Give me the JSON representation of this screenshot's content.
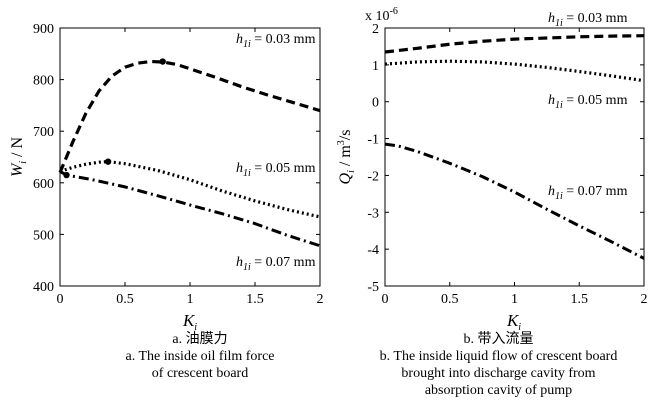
{
  "chart_data": [
    {
      "id": "a",
      "type": "line",
      "xlabel": "K",
      "xlabel_sub": "i",
      "ylabel": "W",
      "ylabel_sub": "i",
      "ylabel_unit": " / N",
      "xlim": [
        0,
        2
      ],
      "ylim": [
        400,
        900
      ],
      "xticks": [
        0,
        0.5,
        1,
        1.5,
        2
      ],
      "xtick_labels": [
        "0",
        "0.5",
        "1",
        "1.5",
        "2"
      ],
      "yticks": [
        400,
        500,
        600,
        700,
        800,
        900
      ],
      "ytick_labels": [
        "400",
        "500",
        "600",
        "700",
        "800",
        "900"
      ],
      "series": [
        {
          "name": "h1i = 0.03 mm",
          "style": "dashed",
          "x": [
            0,
            0.1,
            0.2,
            0.3,
            0.4,
            0.5,
            0.6,
            0.7,
            0.8,
            0.9,
            1.0,
            1.2,
            1.4,
            1.6,
            1.8,
            2.0
          ],
          "y": [
            620,
            680,
            735,
            778,
            807,
            824,
            832,
            835,
            834,
            829,
            821,
            804,
            786,
            770,
            755,
            740
          ],
          "marker": {
            "x": 0.79,
            "y": 835
          }
        },
        {
          "name": "h1i = 0.05 mm",
          "style": "dotted",
          "x": [
            0,
            0.1,
            0.2,
            0.3,
            0.37,
            0.5,
            0.75,
            1.0,
            1.25,
            1.5,
            1.75,
            2.0
          ],
          "y": [
            622,
            630,
            636,
            640,
            641,
            637,
            624,
            606,
            584,
            565,
            548,
            534
          ],
          "marker": {
            "x": 0.37,
            "y": 641
          }
        },
        {
          "name": "h1i = 0.07 mm",
          "style": "dashdot",
          "x": [
            0,
            0.05,
            0.25,
            0.5,
            0.75,
            1.0,
            1.25,
            1.5,
            1.75,
            2.0
          ],
          "y": [
            622,
            615,
            606,
            592,
            575,
            557,
            540,
            521,
            498,
            478
          ],
          "marker": {
            "x": 0.05,
            "y": 615
          }
        }
      ],
      "annotations": [
        {
          "series": 0,
          "text_main": "h",
          "text_sub": "1i",
          "text_value": " = 0.03 mm"
        },
        {
          "series": 1,
          "text_main": "h",
          "text_sub": "1i",
          "text_value": " = 0.05 mm"
        },
        {
          "series": 2,
          "text_main": "h",
          "text_sub": "1i",
          "text_value": " = 0.07 mm"
        }
      ]
    },
    {
      "id": "b",
      "type": "line",
      "xlabel": "K",
      "xlabel_sub": "i",
      "ylabel": "Q",
      "ylabel_sub": "i",
      "ylabel_unit": " / m",
      "ylabel_unit_sup": "3",
      "ylabel_unit_tail": "/s",
      "scale_text": "x 10",
      "scale_exp": "-6",
      "xlim": [
        0,
        2
      ],
      "ylim": [
        -5,
        2
      ],
      "xticks": [
        0,
        0.5,
        1,
        1.5,
        2
      ],
      "xtick_labels": [
        "0",
        "0.5",
        "1",
        "1.5",
        "2"
      ],
      "yticks": [
        -5,
        -4,
        -3,
        -2,
        -1,
        0,
        1,
        2
      ],
      "ytick_labels": [
        "-5",
        "-4",
        "-3",
        "-2",
        "-1",
        "0",
        "1",
        "2"
      ],
      "series": [
        {
          "name": "h1i = 0.03 mm",
          "style": "dashed",
          "x": [
            0,
            0.25,
            0.5,
            0.75,
            1.0,
            1.25,
            1.5,
            1.75,
            2.0
          ],
          "y": [
            1.35,
            1.45,
            1.56,
            1.64,
            1.7,
            1.73,
            1.76,
            1.78,
            1.79
          ]
        },
        {
          "name": "h1i = 0.05 mm",
          "style": "dotted",
          "x": [
            0,
            0.25,
            0.5,
            0.75,
            1.0,
            1.25,
            1.5,
            1.75,
            2.0
          ],
          "y": [
            1.02,
            1.08,
            1.1,
            1.08,
            1.02,
            0.93,
            0.82,
            0.7,
            0.57
          ]
        },
        {
          "name": "h1i = 0.07 mm",
          "style": "dashdot",
          "x": [
            0,
            0.1,
            0.25,
            0.5,
            0.75,
            1.0,
            1.25,
            1.5,
            1.75,
            2.0
          ],
          "y": [
            -1.15,
            -1.2,
            -1.35,
            -1.67,
            -2.03,
            -2.45,
            -2.92,
            -3.37,
            -3.8,
            -4.25
          ]
        }
      ],
      "annotations": [
        {
          "series": 0,
          "text_main": "h",
          "text_sub": "1i",
          "text_value": " = 0.03 mm"
        },
        {
          "series": 1,
          "text_main": "h",
          "text_sub": "1i",
          "text_value": " = 0.05 mm"
        },
        {
          "series": 2,
          "text_main": "h",
          "text_sub": "1i",
          "text_value": " = 0.07 mm"
        }
      ]
    }
  ],
  "captions": {
    "a": {
      "cn": "a. 油膜力",
      "en_line1": "a. The inside oil film force",
      "en_line2": "of crescent board"
    },
    "b": {
      "cn": "b. 带入流量",
      "en_line1": "b. The inside liquid flow of crescent board",
      "en_line2": "brought into discharge cavity from",
      "en_line3": "absorption cavity of pump"
    }
  },
  "colors": {
    "line": "#000000",
    "background": "#ffffff"
  }
}
